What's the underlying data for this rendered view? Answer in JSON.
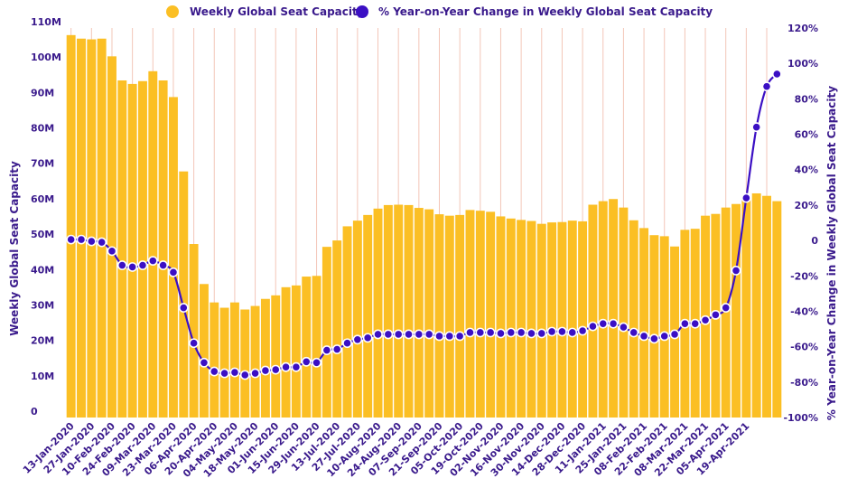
{
  "chart_data": {
    "type": "bar+line",
    "legend": {
      "placement": "top-center",
      "entries": [
        {
          "label": "Weekly Global Seat Capacity",
          "color": "#FBBF24",
          "marker": "circle"
        },
        {
          "label": "% Year-on-Year Change in Weekly Global Seat Capacity",
          "color": "#3B0FC4",
          "marker": "circle"
        }
      ]
    },
    "ylabel_left": "Weekly Global Seat Capacity",
    "ylabel_right": "% Year-on-Year Change in Weekly Global Seat Capacity",
    "left_axis": {
      "min": 0,
      "max": 110000000,
      "ticks": [
        0,
        10000000,
        20000000,
        30000000,
        40000000,
        50000000,
        60000000,
        70000000,
        80000000,
        90000000,
        100000000,
        110000000
      ],
      "tick_labels": [
        "0",
        "10M",
        "20M",
        "30M",
        "40M",
        "50M",
        "60M",
        "70M",
        "80M",
        "90M",
        "100M",
        "110M"
      ]
    },
    "right_axis": {
      "min": -100,
      "max": 120,
      "ticks": [
        -100,
        -80,
        -60,
        -40,
        -20,
        0,
        20,
        40,
        60,
        80,
        100,
        120
      ],
      "tick_labels": [
        "-100%",
        "-80%",
        "-60%",
        "-40%",
        "-20%",
        "0",
        "20%",
        "40%",
        "60%",
        "80%",
        "100%",
        "120%"
      ]
    },
    "grid": "vertical",
    "x_tick_labels": [
      "13-Jan-2020",
      "27-Jan-2020",
      "10-Feb-2020",
      "24-Feb-2020",
      "09-Mar-2020",
      "23-Mar-2020",
      "06-Apr-2020",
      "20-Apr-2020",
      "04-May-2020",
      "18-May-2020",
      "01-Jun-2020",
      "15-Jun-2020",
      "29-Jun-2020",
      "13-Jul-2020",
      "27-Jul-2020",
      "10-Aug-2020",
      "24-Aug-2020",
      "07-Sep-2020",
      "21-Sep-2020",
      "05-Oct-2020",
      "19-Oct-2020",
      "02-Nov-2020",
      "16-Nov-2020",
      "30-Nov-2020",
      "14-Dec-2020",
      "28-Dec-2020",
      "11-Jan-2021",
      "25-Jan-2021",
      "08-Feb-2021",
      "22-Feb-2021",
      "08-Mar-2021",
      "22-Mar-2021",
      "05-Apr-2021",
      "19-Apr-2021"
    ],
    "series": [
      {
        "name": "Weekly Global Seat Capacity",
        "type": "bar",
        "axis": "left",
        "color": "#FBBF24",
        "values": [
          108000000,
          107000000,
          106800000,
          107000000,
          102000000,
          95200000,
          94200000,
          95000000,
          97800000,
          95200000,
          90500000,
          69500000,
          49000000,
          37700000,
          32500000,
          31000000,
          32500000,
          30500000,
          31500000,
          33500000,
          34500000,
          36800000,
          37300000,
          39800000,
          40000000,
          48200000,
          50000000,
          54000000,
          55600000,
          57200000,
          59000000,
          60000000,
          60100000,
          60000000,
          59200000,
          58800000,
          57400000,
          57000000,
          57200000,
          58600000,
          58400000,
          58100000,
          56800000,
          56200000,
          55800000,
          55500000,
          54700000,
          55100000,
          55200000,
          55600000,
          55400000,
          60100000,
          61100000,
          61700000,
          59300000,
          55700000,
          53500000,
          51500000,
          51200000,
          48300000,
          53000000,
          53300000,
          57000000,
          57500000,
          59300000,
          60300000,
          62400000,
          63300000,
          62600000,
          61100000
        ]
      },
      {
        "name": "% Year-on-Year Change in Weekly Global Seat Capacity",
        "type": "line",
        "axis": "right",
        "color": "#3B0FC4",
        "values": [
          0.5,
          0.5,
          -0.5,
          -1.0,
          -6.0,
          -14.0,
          -15.0,
          -14.0,
          -11.5,
          -14.0,
          -18.0,
          -38.0,
          -58.0,
          -69.0,
          -74.0,
          -75.0,
          -74.5,
          -76.0,
          -75.0,
          -73.5,
          -73.0,
          -71.5,
          -71.5,
          -68.5,
          -69.0,
          -62.0,
          -61.5,
          -58.0,
          -56.0,
          -55.0,
          -53.0,
          -53.0,
          -53.0,
          -53.0,
          -53.0,
          -53.0,
          -54.0,
          -54.0,
          -54.0,
          -52.0,
          -52.0,
          -52.0,
          -52.5,
          -52.0,
          -52.0,
          -52.5,
          -52.5,
          -51.5,
          -51.5,
          -52.0,
          -51.0,
          -48.5,
          -47.0,
          -47.0,
          -49.0,
          -52.0,
          -54.0,
          -55.5,
          -54.0,
          -53.0,
          -47.0,
          -47.0,
          -45.0,
          -42.0,
          -38.0,
          -17.0,
          24.0,
          64.0,
          87.0,
          94.0
        ]
      }
    ]
  }
}
